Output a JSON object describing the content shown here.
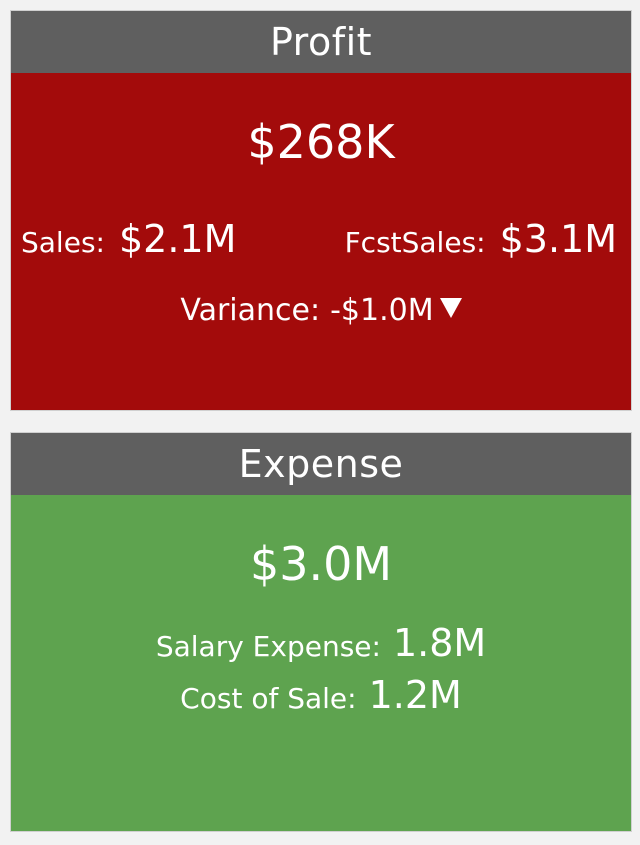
{
  "profit_card": {
    "title": "Profit",
    "value": "$268K",
    "sales_label": "Sales:",
    "sales_value": "$2.1M",
    "fcst_label": "FcstSales:",
    "fcst_value": "$3.1M",
    "variance_label": "Variance:",
    "variance_value": "-$1.0M",
    "variance_icon": "triangle-down-icon",
    "background_color": "#a30b0b"
  },
  "expense_card": {
    "title": "Expense",
    "value": "$3.0M",
    "salary_label": "Salary Expense:",
    "salary_value": "1.8M",
    "cost_label": "Cost of Sale:",
    "cost_value": "1.2M",
    "background_color": "#5ea34f"
  },
  "header_color": "#5f5f5f"
}
